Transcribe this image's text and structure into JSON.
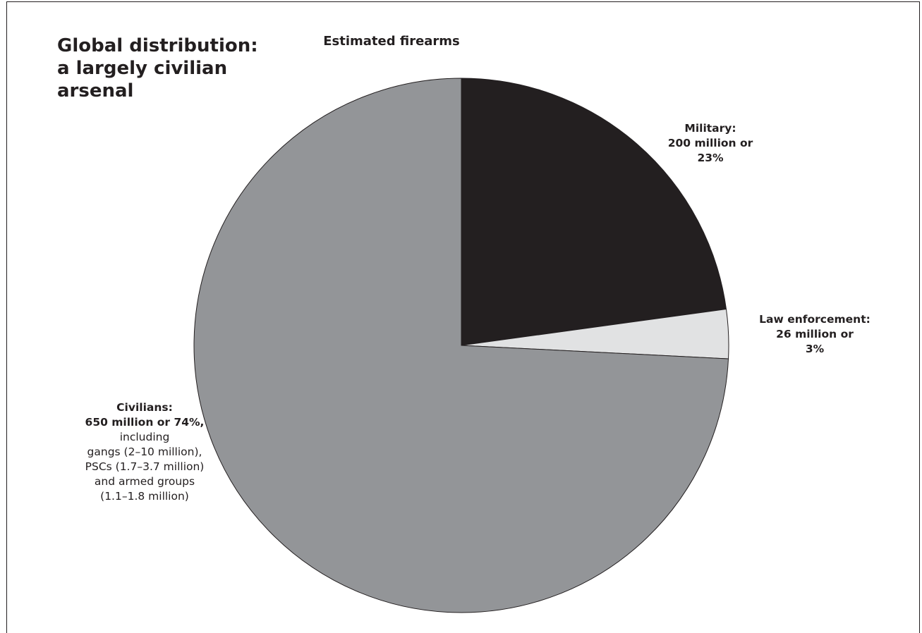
{
  "heading": {
    "lines": [
      "Global distribution:",
      "a largely civilian",
      "arsenal"
    ]
  },
  "chart_data": {
    "type": "pie",
    "title": "Estimated firearms",
    "slices": [
      {
        "name": "Military",
        "value": 200,
        "percent": 23,
        "color": "#231f20",
        "label_lines": [
          "Military:",
          "200 million or",
          "23%"
        ],
        "detail_lines": []
      },
      {
        "name": "Law enforcement",
        "value": 26,
        "percent": 3,
        "color": "#e1e2e3",
        "label_lines": [
          "Law enforcement:",
          "26 million or",
          "3%"
        ],
        "detail_lines": []
      },
      {
        "name": "Civilians",
        "value": 650,
        "percent": 74,
        "color": "#939598",
        "label_lines": [
          "Civilians:",
          "650 million or 74%,"
        ],
        "detail_lines": [
          "including",
          "gangs (2–10 million),",
          "PSCs (1.7–3.7 million)",
          "and armed groups",
          "(1.1–1.8 million)"
        ]
      }
    ]
  }
}
